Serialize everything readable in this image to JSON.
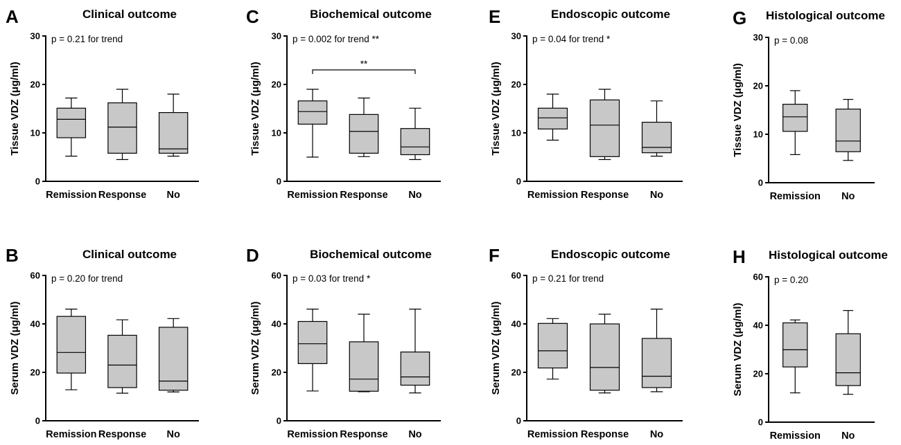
{
  "chart_data": [
    {
      "type": "box",
      "panel_label": "A",
      "title": "Clinical outcome",
      "ylabel": "Tissue VDZ (μg/ml)",
      "ylim": [
        0,
        30
      ],
      "yticks": [
        0,
        10,
        20,
        30
      ],
      "annotation": "p = 0.21 for trend",
      "categories": [
        "Remission",
        "Response",
        "No"
      ],
      "boxes": [
        {
          "min": 5.2,
          "q1": 9.0,
          "median": 12.8,
          "q3": 15.1,
          "max": 17.2
        },
        {
          "min": 4.5,
          "q1": 5.8,
          "median": 11.2,
          "q3": 16.2,
          "max": 19.0
        },
        {
          "min": 5.2,
          "q1": 5.8,
          "median": 6.7,
          "q3": 14.2,
          "max": 18.0
        }
      ]
    },
    {
      "type": "box",
      "panel_label": "B",
      "title": "Clinical outcome",
      "ylabel": "Serum VDZ (μg/ml)",
      "ylim": [
        0,
        60
      ],
      "yticks": [
        0,
        20,
        40,
        60
      ],
      "annotation": "p = 0.20 for trend",
      "categories": [
        "Remission",
        "Response",
        "No"
      ],
      "boxes": [
        {
          "min": 12.8,
          "q1": 19.7,
          "median": 28.2,
          "q3": 43.1,
          "max": 46.1
        },
        {
          "min": 11.4,
          "q1": 13.7,
          "median": 23.0,
          "q3": 35.3,
          "max": 41.7
        },
        {
          "min": 11.9,
          "q1": 12.6,
          "median": 16.4,
          "q3": 38.6,
          "max": 42.2
        }
      ]
    },
    {
      "type": "box",
      "panel_label": "C",
      "title": "Biochemical outcome",
      "ylabel": "Tissue VDZ (μg/ml)",
      "ylim": [
        0,
        30
      ],
      "yticks": [
        0,
        10,
        20,
        30
      ],
      "annotation": "p = 0.002 for trend **",
      "significance": {
        "from": 0,
        "to": 2,
        "y": 23.0,
        "label": "**"
      },
      "categories": [
        "Remission",
        "Response",
        "No"
      ],
      "boxes": [
        {
          "min": 5.0,
          "q1": 11.8,
          "median": 14.4,
          "q3": 16.6,
          "max": 19.0
        },
        {
          "min": 5.1,
          "q1": 5.8,
          "median": 10.3,
          "q3": 13.8,
          "max": 17.2
        },
        {
          "min": 4.5,
          "q1": 5.5,
          "median": 7.1,
          "q3": 10.9,
          "max": 15.1
        }
      ]
    },
    {
      "type": "box",
      "panel_label": "D",
      "title": "Biochemical outcome",
      "ylabel": "Serum VDZ (μg/ml)",
      "ylim": [
        0,
        60
      ],
      "yticks": [
        0,
        20,
        40,
        60
      ],
      "annotation": "p = 0.03 for trend *",
      "categories": [
        "Remission",
        "Response",
        "No"
      ],
      "boxes": [
        {
          "min": 12.3,
          "q1": 23.6,
          "median": 31.8,
          "q3": 41.0,
          "max": 46.1
        },
        {
          "min": 12.0,
          "q1": 12.2,
          "median": 17.2,
          "q3": 32.6,
          "max": 44.0
        },
        {
          "min": 11.5,
          "q1": 14.7,
          "median": 18.1,
          "q3": 28.4,
          "max": 46.1
        }
      ]
    },
    {
      "type": "box",
      "panel_label": "E",
      "title": "Endoscopic outcome",
      "ylabel": "Tissue VDZ (μg/ml)",
      "ylim": [
        0,
        30
      ],
      "yticks": [
        0,
        10,
        20,
        30
      ],
      "annotation": "p = 0.04 for trend *",
      "categories": [
        "Remission",
        "Response",
        "No"
      ],
      "boxes": [
        {
          "min": 8.5,
          "q1": 10.8,
          "median": 13.1,
          "q3": 15.1,
          "max": 18.0
        },
        {
          "min": 4.5,
          "q1": 5.1,
          "median": 11.6,
          "q3": 16.8,
          "max": 19.0
        },
        {
          "min": 5.2,
          "q1": 5.9,
          "median": 7.0,
          "q3": 12.2,
          "max": 16.6
        }
      ]
    },
    {
      "type": "box",
      "panel_label": "F",
      "title": "Endoscopic outcome",
      "ylabel": "Serum VDZ (μg/ml)",
      "ylim": [
        0,
        60
      ],
      "yticks": [
        0,
        20,
        40,
        60
      ],
      "annotation": "p = 0.21 for trend",
      "categories": [
        "Remission",
        "Response",
        "No"
      ],
      "boxes": [
        {
          "min": 17.2,
          "q1": 21.8,
          "median": 28.9,
          "q3": 40.2,
          "max": 42.2
        },
        {
          "min": 11.5,
          "q1": 12.6,
          "median": 22.0,
          "q3": 40.0,
          "max": 44.0
        },
        {
          "min": 12.0,
          "q1": 13.7,
          "median": 18.4,
          "q3": 34.0,
          "max": 46.1
        }
      ]
    },
    {
      "type": "box",
      "panel_label": "G",
      "title": "Histological outcome",
      "ylabel": "Tissue VDZ (μg/ml)",
      "ylim": [
        0,
        30
      ],
      "yticks": [
        0,
        10,
        20,
        30
      ],
      "annotation": "p = 0.08",
      "categories": [
        "Remission",
        "No"
      ],
      "boxes": [
        {
          "min": 5.8,
          "q1": 10.6,
          "median": 13.6,
          "q3": 16.2,
          "max": 19.0
        },
        {
          "min": 4.6,
          "q1": 6.4,
          "median": 8.6,
          "q3": 15.2,
          "max": 17.2
        }
      ]
    },
    {
      "type": "box",
      "panel_label": "H",
      "title": "Histological outcome",
      "ylabel": "Serum VDZ (μg/ml)",
      "ylim": [
        0,
        60
      ],
      "yticks": [
        0,
        20,
        40,
        60
      ],
      "annotation": "p = 0.20",
      "categories": [
        "Remission",
        "No"
      ],
      "boxes": [
        {
          "min": 12.1,
          "q1": 22.8,
          "median": 29.9,
          "q3": 41.0,
          "max": 42.2
        },
        {
          "min": 11.5,
          "q1": 15.1,
          "median": 20.4,
          "q3": 36.5,
          "max": 46.1
        }
      ]
    }
  ]
}
